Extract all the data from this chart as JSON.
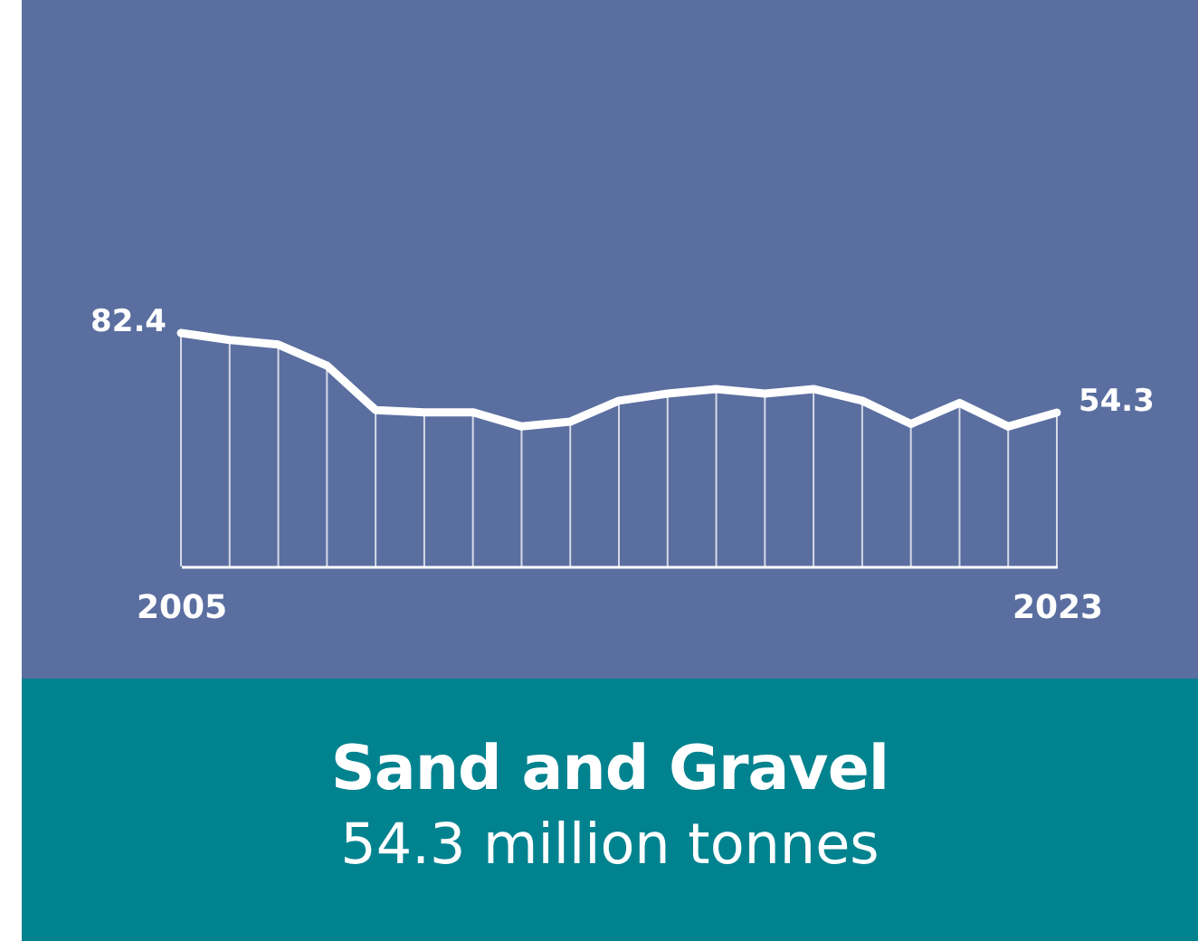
{
  "chart_data": {
    "type": "line",
    "title": "Sand and Gravel",
    "subtitle": "54.3 million tonnes",
    "categories": [
      "2005",
      null,
      null,
      null,
      null,
      null,
      null,
      null,
      null,
      null,
      null,
      null,
      null,
      null,
      null,
      null,
      null,
      null,
      "2023"
    ],
    "values": [
      82.4,
      79.9,
      78.3,
      70.9,
      55.2,
      54.4,
      54.4,
      49.4,
      51.1,
      58.5,
      61.0,
      62.6,
      61.0,
      62.6,
      58.5,
      50.3,
      57.7,
      49.4,
      54.3
    ],
    "value_labels": [
      "82.4",
      null,
      null,
      null,
      null,
      null,
      null,
      null,
      null,
      null,
      null,
      null,
      null,
      null,
      null,
      null,
      null,
      null,
      "54.3"
    ],
    "color": "#ffffff",
    "grid": "x"
  }
}
